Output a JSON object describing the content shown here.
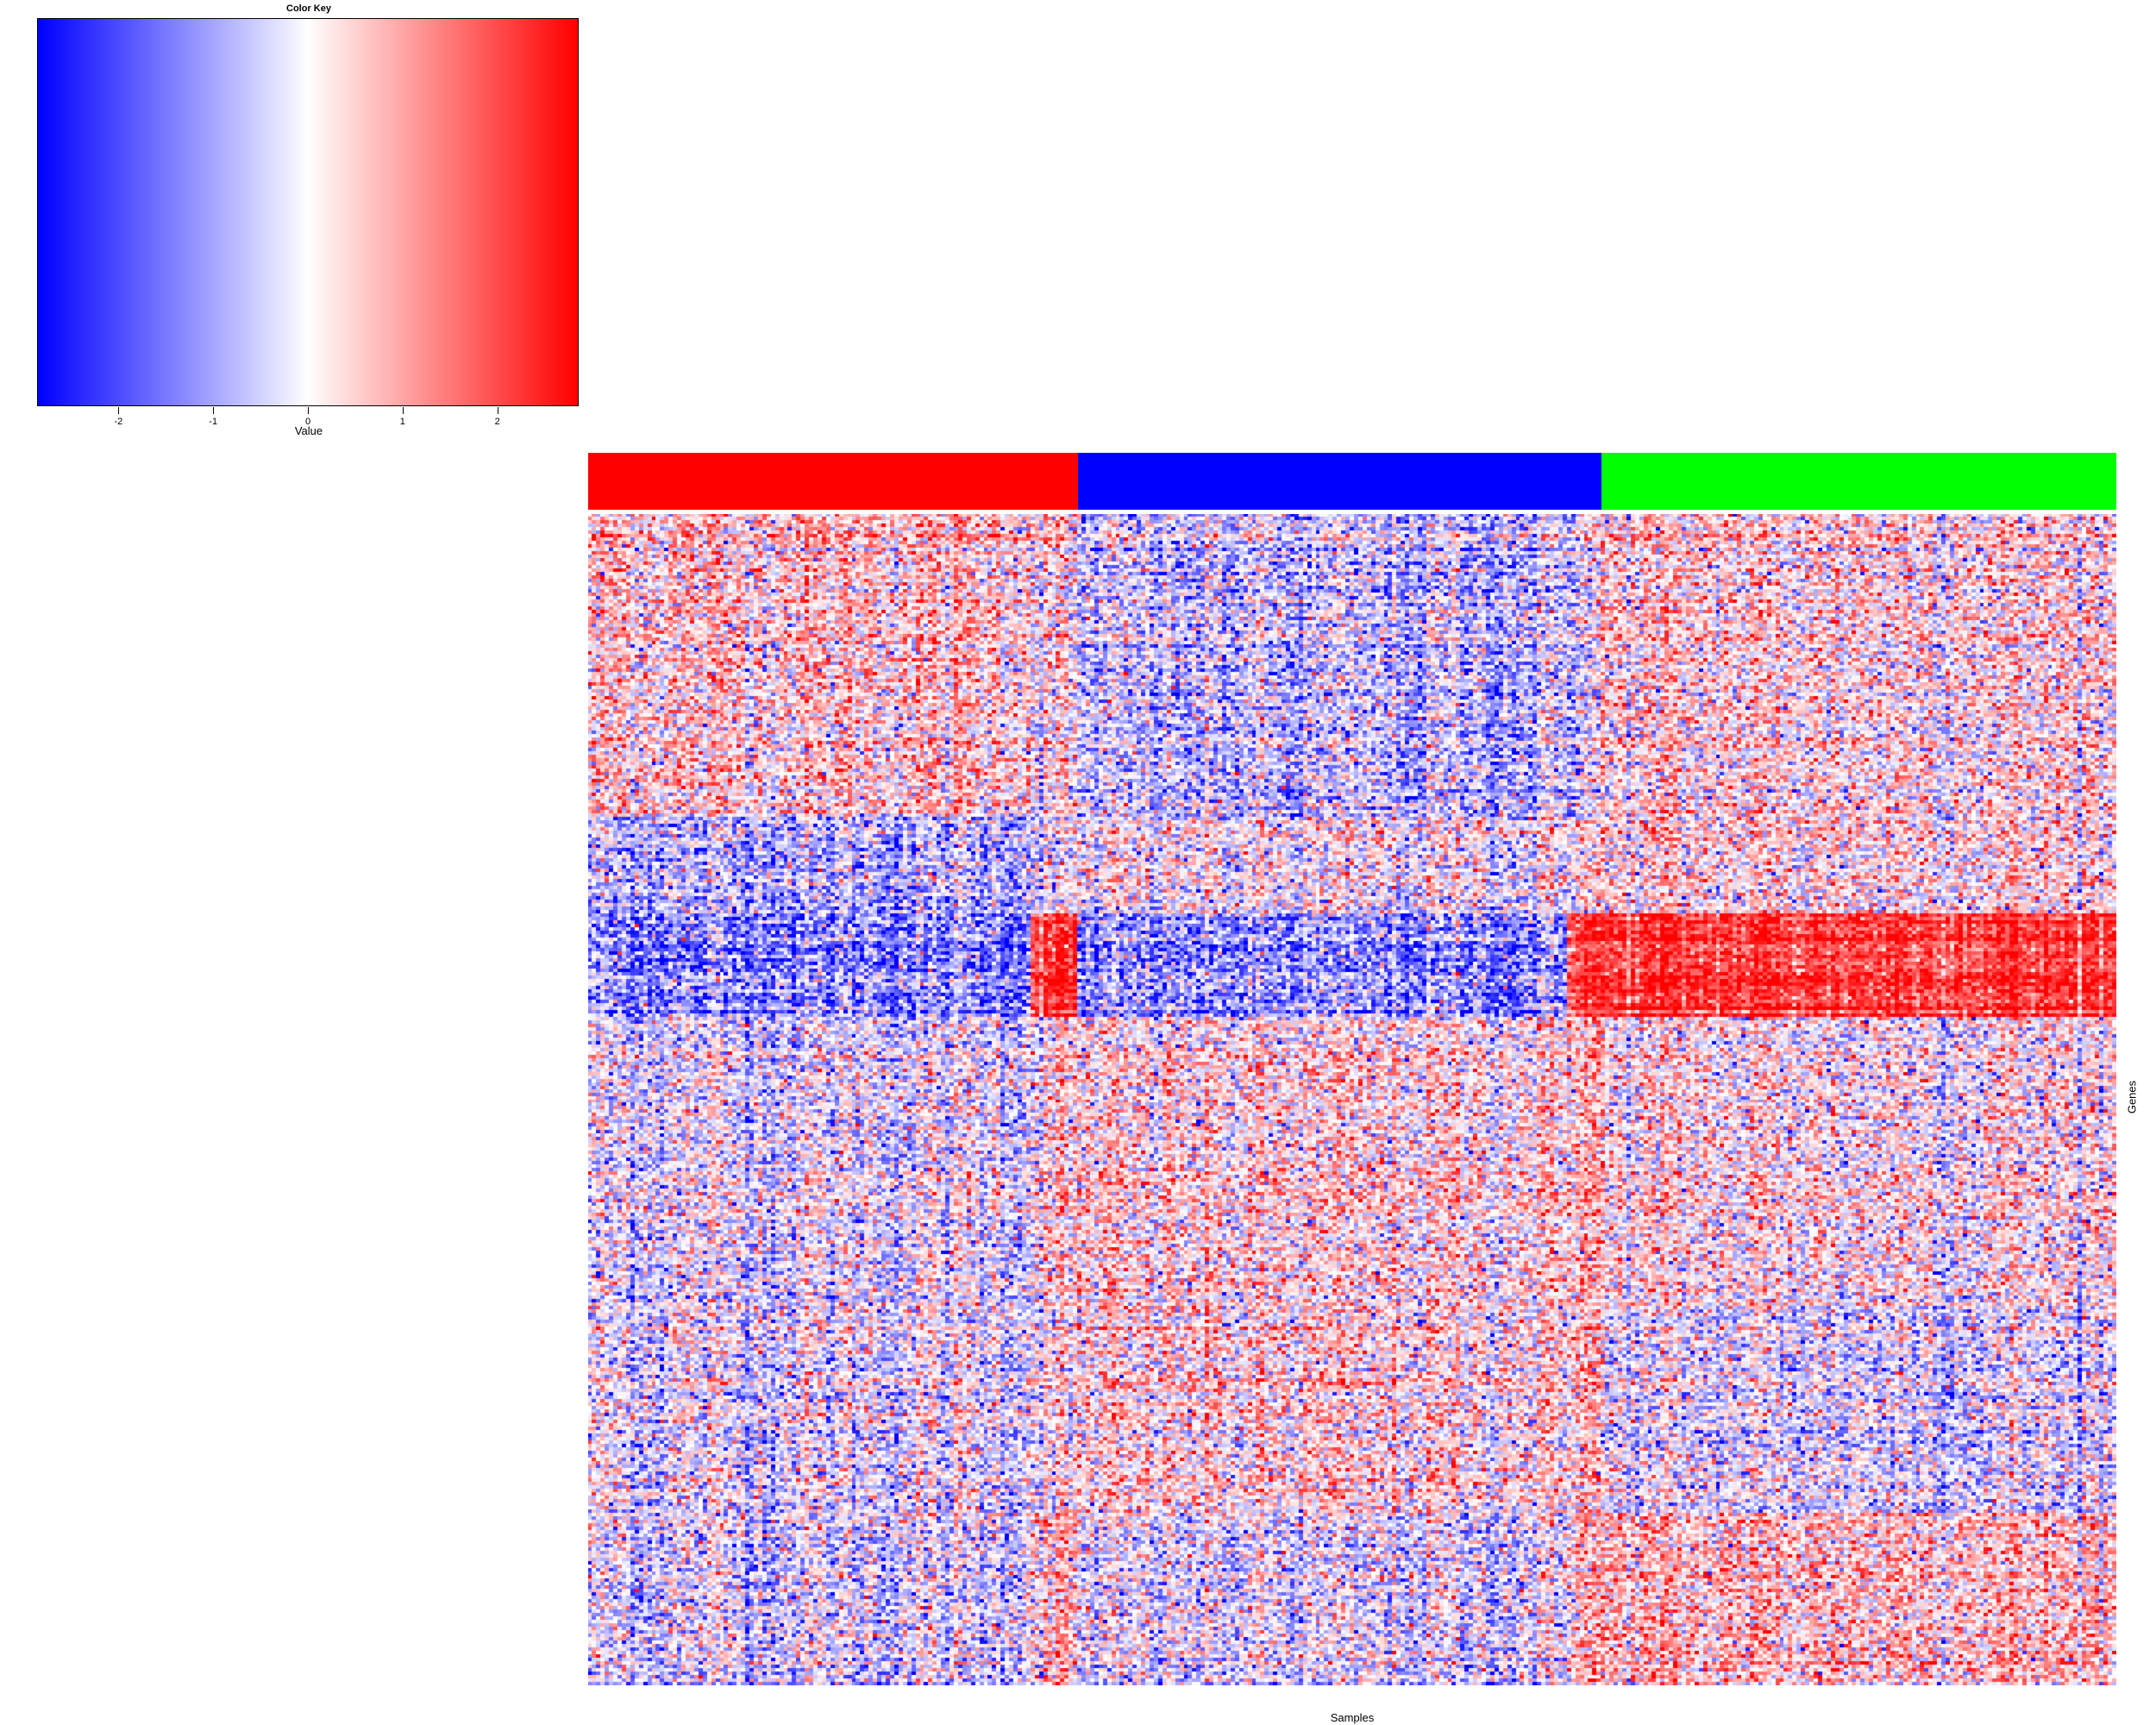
{
  "chart_data": {
    "type": "heatmap",
    "color_key": {
      "title": "Color Key",
      "xlabel": "Value",
      "range": [
        -2.85,
        2.85
      ],
      "ticks": [
        -2,
        -1,
        0,
        1,
        2
      ],
      "tick_labels": [
        "-2",
        "-1",
        "0",
        "1",
        "2"
      ],
      "colors": {
        "low": "#0000ff",
        "mid": "#ffffff",
        "high": "#ff0000"
      }
    },
    "xlabel": "Samples",
    "ylabel": "Genes",
    "sample_groups": [
      {
        "color": "#ff0000",
        "n_samples": 115
      },
      {
        "color": "#0000ff",
        "n_samples": 123
      },
      {
        "color": "#00ff00",
        "n_samples": 121
      }
    ],
    "n_samples": 359,
    "n_genes": 340,
    "sample_clusters": [
      {
        "n_samples": 104,
        "group_color": "#ff0000"
      },
      {
        "n_samples": 11,
        "group_color": "#ff0000"
      },
      {
        "n_samples": 115,
        "group_color": "#0000ff"
      },
      {
        "n_samples": 8,
        "group_color": "#0000ff"
      },
      {
        "n_samples": 121,
        "group_color": "#00ff00"
      }
    ],
    "gene_blocks": [
      {
        "n_genes": 88,
        "cluster_means": [
          0.5,
          0.1,
          -0.7,
          -0.2,
          0.3
        ]
      },
      {
        "n_genes": 28,
        "cluster_means": [
          -0.7,
          -0.2,
          0.0,
          0.5,
          0.4
        ]
      },
      {
        "n_genes": 30,
        "cluster_means": [
          -1.3,
          2.2,
          -1.3,
          2.2,
          2.2
        ]
      },
      {
        "n_genes": 84,
        "cluster_means": [
          -0.3,
          0.2,
          0.2,
          0.8,
          0.1
        ]
      },
      {
        "n_genes": 60,
        "cluster_means": [
          -0.2,
          0.0,
          0.3,
          0.9,
          -0.3
        ]
      },
      {
        "n_genes": 50,
        "cluster_means": [
          -0.4,
          0.5,
          -0.4,
          0.9,
          0.6
        ]
      }
    ]
  }
}
